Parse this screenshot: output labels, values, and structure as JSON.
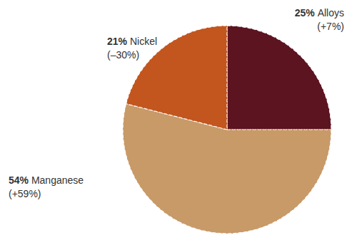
{
  "chart_data": {
    "type": "pie",
    "categories": [
      "Alloys",
      "Manganese",
      "Nickel"
    ],
    "values": [
      25,
      54,
      21
    ],
    "value_labels": [
      "25%",
      "54%",
      "21%"
    ],
    "changes": [
      {
        "value": 7,
        "label": "(+7%)"
      },
      {
        "value": 59,
        "label": "(+59%)"
      },
      {
        "value": -30,
        "label": "(–30%)"
      }
    ],
    "colors": [
      "#5c1420",
      "#c89a68",
      "#c2561e"
    ],
    "data_labels": true
  }
}
